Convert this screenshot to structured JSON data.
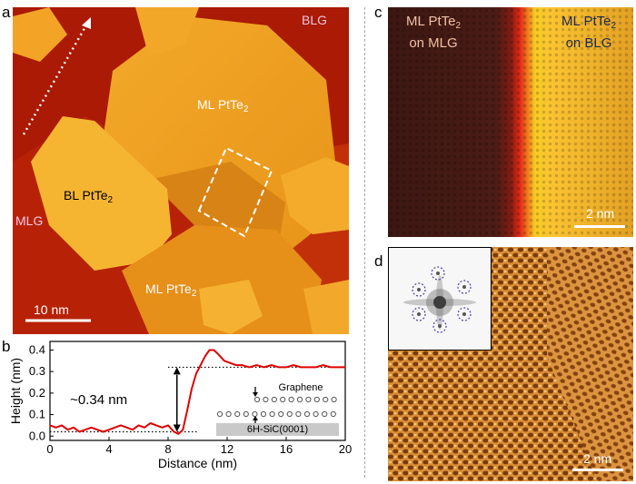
{
  "panels": {
    "a": {
      "label": "a",
      "top_right": "BLG",
      "ml_upper": {
        "main": "ML PtTe",
        "sub": "2"
      },
      "bl": {
        "main": "BL PtTe",
        "sub": "2"
      },
      "mlg": "MLG",
      "ml_lower": {
        "main": "ML PtTe",
        "sub": "2"
      },
      "scalebar": "10 nm"
    },
    "b": {
      "label": "b",
      "step_label": "~0.34 nm",
      "inset_graphene": "Graphene",
      "inset_substrate": "6H-SiC(0001)"
    },
    "c": {
      "label": "c",
      "left_line1": "ML PtTe",
      "left_sub": "2",
      "left_line2": "on MLG",
      "right_line1": "ML PtTe",
      "right_sub": "2",
      "right_line2": "on BLG",
      "scalebar": "2 nm"
    },
    "d": {
      "label": "d",
      "scalebar": "2 nm"
    }
  },
  "chart_data": {
    "type": "line",
    "title": "",
    "xlabel": "Distance (nm)",
    "ylabel": "Height (nm)",
    "xlim": [
      0,
      20
    ],
    "ylim": [
      -0.02,
      0.44
    ],
    "xticks": [
      "0",
      "4",
      "8",
      "12",
      "16",
      "20"
    ],
    "yticks": [
      "0.0",
      "0.1",
      "0.2",
      "0.3",
      "0.4"
    ],
    "series": [
      {
        "color": "#e00000",
        "x": [
          0,
          0.4,
          0.8,
          1.2,
          1.6,
          2,
          2.4,
          2.8,
          3.2,
          3.6,
          4,
          4.4,
          4.8,
          5.2,
          5.6,
          6,
          6.4,
          6.8,
          7.2,
          7.6,
          8,
          8.4,
          8.7,
          9,
          9.3,
          9.6,
          9.9,
          10.2,
          10.5,
          10.8,
          11.1,
          11.4,
          11.8,
          12.2,
          12.6,
          13,
          13.5,
          14,
          14.5,
          15,
          15.5,
          16,
          16.5,
          17,
          17.5,
          18,
          18.5,
          19,
          19.5,
          20
        ],
        "y": [
          0.05,
          0.04,
          0.05,
          0.03,
          0.04,
          0.02,
          0.03,
          0.04,
          0.03,
          0.02,
          0.03,
          0.04,
          0.05,
          0.04,
          0.03,
          0.05,
          0.04,
          0.06,
          0.05,
          0.04,
          0.05,
          0.02,
          0.01,
          0.03,
          0.12,
          0.22,
          0.29,
          0.33,
          0.37,
          0.4,
          0.4,
          0.38,
          0.35,
          0.34,
          0.33,
          0.33,
          0.32,
          0.33,
          0.32,
          0.33,
          0.32,
          0.32,
          0.33,
          0.32,
          0.32,
          0.32,
          0.33,
          0.32,
          0.32,
          0.32
        ]
      }
    ],
    "reference_lines": [
      {
        "y": 0.02,
        "x_from": 0,
        "x_to": 10,
        "style": "dotted"
      },
      {
        "y": 0.32,
        "x_from": 8,
        "x_to": 20,
        "style": "dotted"
      }
    ]
  }
}
